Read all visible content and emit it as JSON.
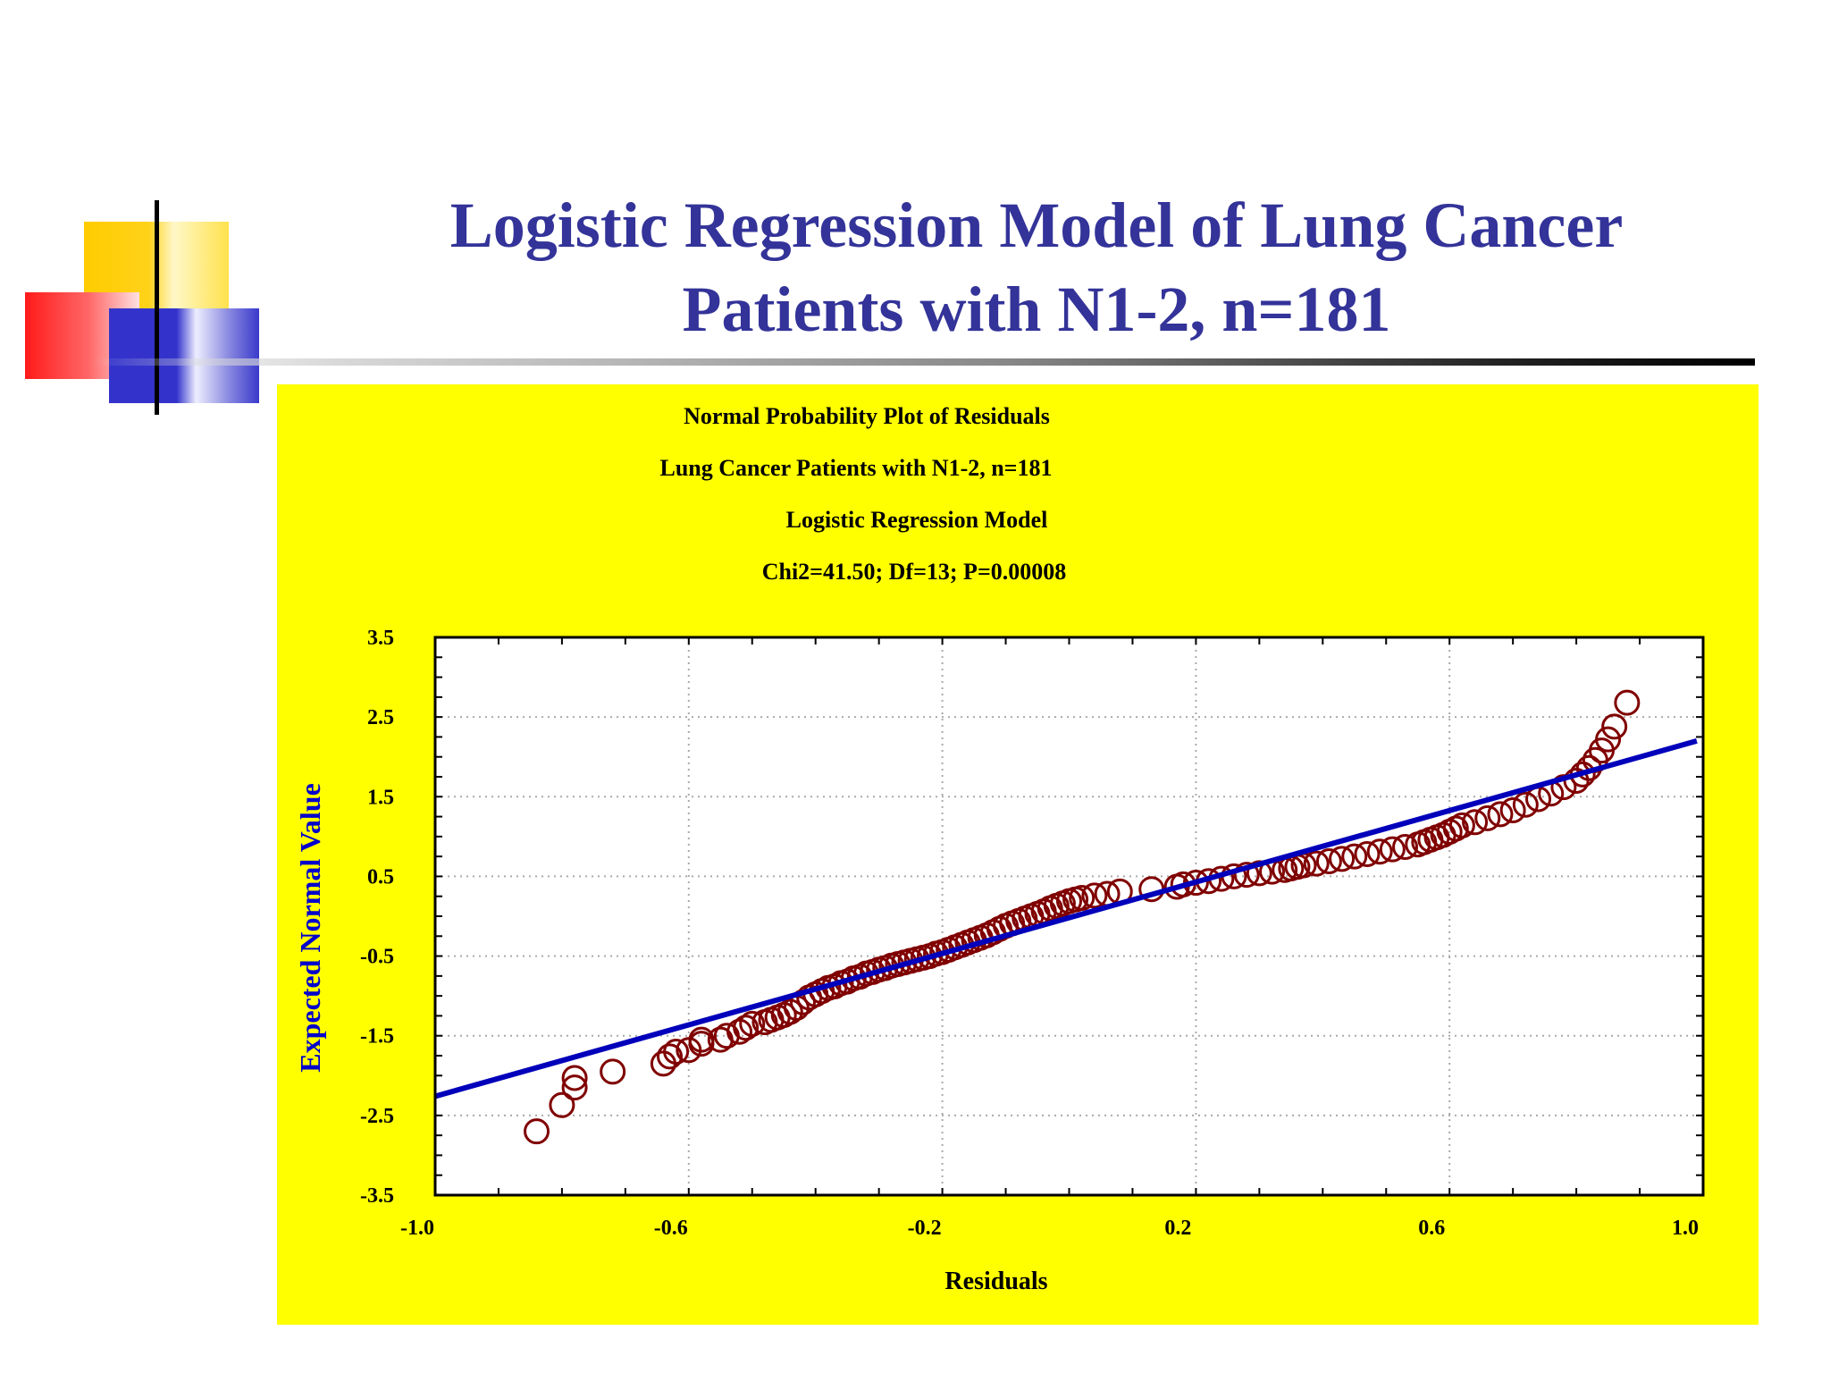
{
  "slide": {
    "title_line1": "Logistic Regression Model of Lung Cancer",
    "title_line2": "Patients with N1-2, n=181"
  },
  "colors": {
    "title": "#333399",
    "panel": "#ffff00",
    "plot_area": "#ffffff",
    "points": "#800000",
    "fit_line": "#0000bb",
    "ylabel": "#0000cc"
  },
  "chart_data": {
    "type": "scatter",
    "header": [
      "Normal Probability Plot of Residuals",
      "Lung Cancer Patients with N1-2, n=181",
      "Logistic Regression Model",
      "Chi2=41.50; Df=13; P=0.00008"
    ],
    "xlabel": "Residuals",
    "ylabel": "Expected Normal Value",
    "xlim": [
      -1.0,
      1.0
    ],
    "ylim": [
      -3.5,
      3.5
    ],
    "xticks": [
      -1.0,
      -0.6,
      -0.2,
      0.2,
      0.6,
      1.0
    ],
    "xtick_labels": [
      "-1.0",
      "-0.6",
      "-0.2",
      "0.2",
      "0.6",
      "1.0"
    ],
    "yticks": [
      3.5,
      2.5,
      1.5,
      0.5,
      -0.5,
      -1.5,
      -2.5,
      -3.5
    ],
    "ytick_labels": [
      "3.5",
      "2.5",
      "1.5",
      "0.5",
      "-0.5",
      "-1.5",
      "-2.5",
      "-3.5"
    ],
    "grid": true,
    "fit_line": {
      "x": [
        -1.0,
        0.99
      ],
      "y": [
        -2.26,
        2.2
      ]
    },
    "series": [
      {
        "points": [
          [
            -0.84,
            -2.7
          ],
          [
            -0.8,
            -2.37
          ],
          [
            -0.78,
            -2.15
          ],
          [
            -0.78,
            -2.03
          ],
          [
            -0.72,
            -1.95
          ],
          [
            -0.64,
            -1.85
          ],
          [
            -0.63,
            -1.76
          ],
          [
            -0.62,
            -1.7
          ],
          [
            -0.6,
            -1.68
          ],
          [
            -0.58,
            -1.6
          ],
          [
            -0.58,
            -1.55
          ],
          [
            -0.55,
            -1.55
          ],
          [
            -0.54,
            -1.5
          ],
          [
            -0.52,
            -1.45
          ],
          [
            -0.51,
            -1.4
          ],
          [
            -0.5,
            -1.35
          ],
          [
            -0.48,
            -1.33
          ],
          [
            -0.47,
            -1.3
          ],
          [
            -0.46,
            -1.27
          ],
          [
            -0.45,
            -1.24
          ],
          [
            -0.44,
            -1.2
          ],
          [
            -0.43,
            -1.15
          ],
          [
            -0.42,
            -1.08
          ],
          [
            -0.41,
            -1.02
          ],
          [
            -0.4,
            -0.98
          ],
          [
            -0.39,
            -0.94
          ],
          [
            -0.38,
            -0.9
          ],
          [
            -0.37,
            -0.88
          ],
          [
            -0.36,
            -0.84
          ],
          [
            -0.35,
            -0.82
          ],
          [
            -0.34,
            -0.78
          ],
          [
            -0.33,
            -0.76
          ],
          [
            -0.32,
            -0.72
          ],
          [
            -0.31,
            -0.7
          ],
          [
            -0.3,
            -0.67
          ],
          [
            -0.29,
            -0.65
          ],
          [
            -0.28,
            -0.62
          ],
          [
            -0.27,
            -0.6
          ],
          [
            -0.26,
            -0.58
          ],
          [
            -0.25,
            -0.56
          ],
          [
            -0.24,
            -0.54
          ],
          [
            -0.23,
            -0.52
          ],
          [
            -0.22,
            -0.5
          ],
          [
            -0.21,
            -0.47
          ],
          [
            -0.2,
            -0.45
          ],
          [
            -0.19,
            -0.42
          ],
          [
            -0.18,
            -0.39
          ],
          [
            -0.17,
            -0.36
          ],
          [
            -0.16,
            -0.33
          ],
          [
            -0.15,
            -0.3
          ],
          [
            -0.14,
            -0.27
          ],
          [
            -0.13,
            -0.24
          ],
          [
            -0.12,
            -0.2
          ],
          [
            -0.11,
            -0.16
          ],
          [
            -0.1,
            -0.12
          ],
          [
            -0.09,
            -0.09
          ],
          [
            -0.08,
            -0.06
          ],
          [
            -0.07,
            -0.03
          ],
          [
            -0.06,
            0.0
          ],
          [
            -0.05,
            0.03
          ],
          [
            -0.04,
            0.06
          ],
          [
            -0.03,
            0.1
          ],
          [
            -0.02,
            0.13
          ],
          [
            -0.01,
            0.16
          ],
          [
            0.0,
            0.19
          ],
          [
            0.01,
            0.21
          ],
          [
            0.02,
            0.23
          ],
          [
            0.04,
            0.26
          ],
          [
            0.06,
            0.28
          ],
          [
            0.08,
            0.31
          ],
          [
            0.13,
            0.34
          ],
          [
            0.17,
            0.37
          ],
          [
            0.18,
            0.4
          ],
          [
            0.2,
            0.42
          ],
          [
            0.22,
            0.44
          ],
          [
            0.24,
            0.47
          ],
          [
            0.26,
            0.5
          ],
          [
            0.28,
            0.52
          ],
          [
            0.3,
            0.54
          ],
          [
            0.32,
            0.56
          ],
          [
            0.34,
            0.58
          ],
          [
            0.35,
            0.6
          ],
          [
            0.36,
            0.62
          ],
          [
            0.37,
            0.64
          ],
          [
            0.39,
            0.66
          ],
          [
            0.41,
            0.69
          ],
          [
            0.43,
            0.72
          ],
          [
            0.45,
            0.75
          ],
          [
            0.47,
            0.78
          ],
          [
            0.49,
            0.81
          ],
          [
            0.51,
            0.84
          ],
          [
            0.53,
            0.87
          ],
          [
            0.55,
            0.9
          ],
          [
            0.56,
            0.93
          ],
          [
            0.57,
            0.96
          ],
          [
            0.58,
            0.99
          ],
          [
            0.59,
            1.02
          ],
          [
            0.6,
            1.06
          ],
          [
            0.61,
            1.1
          ],
          [
            0.62,
            1.14
          ],
          [
            0.64,
            1.18
          ],
          [
            0.66,
            1.23
          ],
          [
            0.68,
            1.28
          ],
          [
            0.7,
            1.33
          ],
          [
            0.72,
            1.4
          ],
          [
            0.74,
            1.47
          ],
          [
            0.76,
            1.54
          ],
          [
            0.78,
            1.62
          ],
          [
            0.8,
            1.7
          ],
          [
            0.81,
            1.78
          ],
          [
            0.82,
            1.86
          ],
          [
            0.83,
            1.96
          ],
          [
            0.84,
            2.08
          ],
          [
            0.85,
            2.22
          ],
          [
            0.86,
            2.38
          ],
          [
            0.88,
            2.68
          ]
        ]
      }
    ]
  }
}
